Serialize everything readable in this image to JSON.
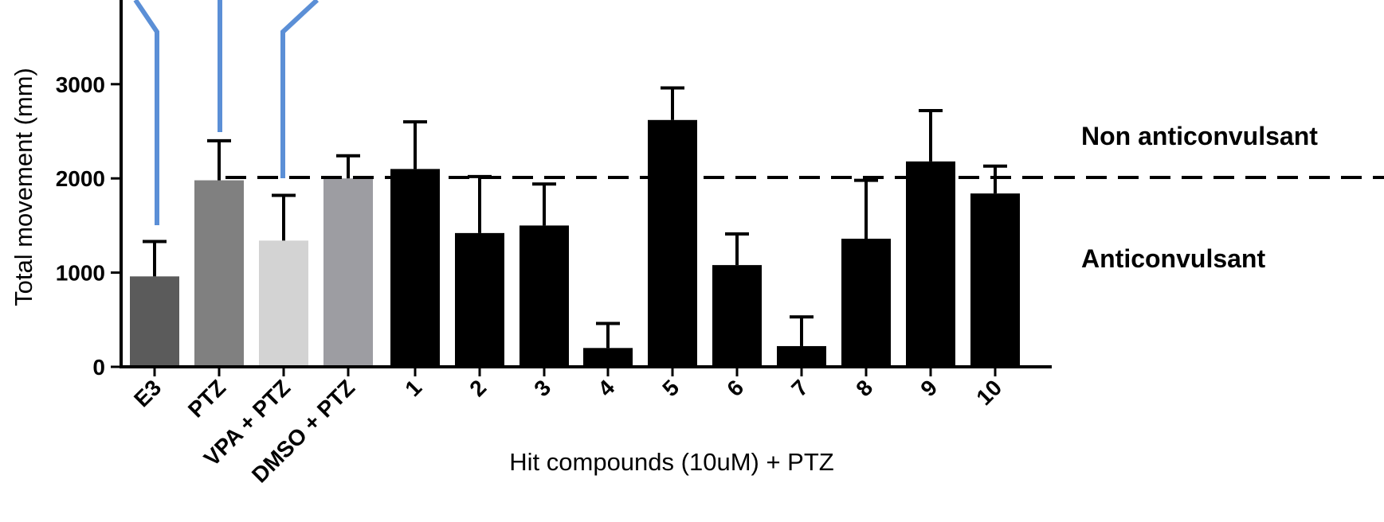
{
  "chart_data": {
    "type": "bar",
    "title": "",
    "ylabel": "Total movement (mm)",
    "xlabel": "Hit compounds (10uM) + PTZ",
    "ylim": [
      0,
      3800
    ],
    "yticks": [
      0,
      1000,
      2000,
      3000
    ],
    "grid": false,
    "categories": [
      "E3",
      "PTZ",
      "VPA + PTZ",
      "DMSO + PTZ",
      "1",
      "2",
      "3",
      "4",
      "5",
      "6",
      "7",
      "8",
      "9",
      "10"
    ],
    "values": [
      960,
      1980,
      1340,
      2000,
      2100,
      1420,
      1500,
      200,
      2620,
      1080,
      220,
      1360,
      2180,
      1840
    ],
    "errors": [
      370,
      420,
      480,
      240,
      500,
      600,
      440,
      260,
      340,
      330,
      310,
      620,
      540,
      290
    ],
    "colors": [
      "#5b5b5b",
      "#808080",
      "#d3d3d3",
      "#9d9da2",
      "#000000",
      "#000000",
      "#000000",
      "#000000",
      "#000000",
      "#000000",
      "#000000",
      "#000000",
      "#000000",
      "#000000"
    ],
    "threshold": 2010,
    "annotations": {
      "above": "Non anticonvulsant",
      "below": "Anticonvulsant"
    },
    "connector_color": "#5b8fd6"
  }
}
